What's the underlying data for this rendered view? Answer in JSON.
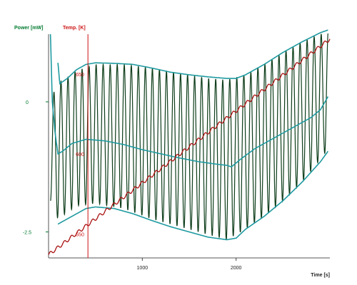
{
  "chart_data": {
    "type": "line",
    "x_axis": {
      "label": "Time [s]",
      "ticks": [
        1000,
        2000
      ],
      "range": [
        0,
        3000
      ]
    },
    "y_axes": [
      {
        "id": "power",
        "label": "Power [mW]",
        "color": "#007a2e",
        "ticks": [
          0,
          -2.5
        ],
        "tick_labels": [
          "0",
          "-2.5"
        ],
        "range": [
          -3.0,
          1.3
        ]
      },
      {
        "id": "temp",
        "label": "Temp. [K]",
        "color": "#cc1111",
        "ticks": [
          650,
          600,
          550
        ],
        "tick_labels": [
          "650",
          "600",
          "550"
        ],
        "range": [
          535,
          675
        ]
      }
    ],
    "cursor": {
      "x": 420,
      "color": "#cc1111"
    },
    "series": [
      {
        "axis": "power",
        "role": "modulated heat flow",
        "color": "#0d3d1a",
        "oscillation_period_s": 75,
        "start_x": 20,
        "envelope_upper": [
          [
            20,
            0.05
          ],
          [
            100,
            0.35
          ],
          [
            300,
            0.6
          ],
          [
            500,
            0.72
          ],
          [
            800,
            0.72
          ],
          [
            1100,
            0.65
          ],
          [
            1400,
            0.55
          ],
          [
            1700,
            0.45
          ],
          [
            1900,
            0.42
          ],
          [
            2100,
            0.52
          ],
          [
            2300,
            0.72
          ],
          [
            2500,
            0.95
          ],
          [
            2700,
            1.15
          ],
          [
            2900,
            1.3
          ],
          [
            2980,
            1.35
          ]
        ],
        "envelope_lower": [
          [
            20,
            -1.9
          ],
          [
            100,
            -2.25
          ],
          [
            300,
            -2.0
          ],
          [
            500,
            -1.95
          ],
          [
            800,
            -2.05
          ],
          [
            1100,
            -2.25
          ],
          [
            1400,
            -2.4
          ],
          [
            1700,
            -2.55
          ],
          [
            1900,
            -2.65
          ],
          [
            2100,
            -2.45
          ],
          [
            2300,
            -2.2
          ],
          [
            2500,
            -1.9
          ],
          [
            2700,
            -1.55
          ],
          [
            2900,
            -1.1
          ],
          [
            2980,
            -0.9
          ]
        ]
      },
      {
        "axis": "power",
        "role": "upper envelope",
        "color": "#1f9aa0",
        "start_x": 100,
        "points": [
          [
            100,
            0.75
          ],
          [
            120,
            0.35
          ],
          [
            200,
            0.45
          ],
          [
            300,
            0.62
          ],
          [
            400,
            0.72
          ],
          [
            500,
            0.75
          ],
          [
            700,
            0.74
          ],
          [
            900,
            0.72
          ],
          [
            1100,
            0.65
          ],
          [
            1300,
            0.57
          ],
          [
            1500,
            0.52
          ],
          [
            1700,
            0.48
          ],
          [
            1900,
            0.45
          ],
          [
            2000,
            0.45
          ],
          [
            2100,
            0.52
          ],
          [
            2300,
            0.72
          ],
          [
            2500,
            0.95
          ],
          [
            2700,
            1.15
          ],
          [
            2900,
            1.33
          ],
          [
            2980,
            1.38
          ]
        ]
      },
      {
        "axis": "power",
        "role": "average heat flow",
        "color": "#1f9aa0",
        "start_x": 20,
        "points": [
          [
            20,
            1.3
          ],
          [
            40,
            0.0
          ],
          [
            70,
            -0.6
          ],
          [
            100,
            -1.0
          ],
          [
            150,
            -0.95
          ],
          [
            250,
            -0.8
          ],
          [
            400,
            -0.72
          ],
          [
            600,
            -0.75
          ],
          [
            800,
            -0.82
          ],
          [
            1000,
            -0.92
          ],
          [
            1200,
            -1.0
          ],
          [
            1400,
            -1.08
          ],
          [
            1600,
            -1.15
          ],
          [
            1800,
            -1.2
          ],
          [
            1900,
            -1.22
          ],
          [
            1950,
            -1.25
          ],
          [
            2050,
            -1.1
          ],
          [
            2200,
            -0.9
          ],
          [
            2400,
            -0.7
          ],
          [
            2600,
            -0.5
          ],
          [
            2800,
            -0.3
          ],
          [
            2900,
            -0.15
          ],
          [
            2980,
            0.1
          ]
        ]
      },
      {
        "axis": "power",
        "role": "lower envelope",
        "color": "#1f9aa0",
        "start_x": 100,
        "points": [
          [
            100,
            -2.35
          ],
          [
            200,
            -2.25
          ],
          [
            300,
            -2.15
          ],
          [
            400,
            -2.05
          ],
          [
            500,
            -2.02
          ],
          [
            700,
            -2.05
          ],
          [
            900,
            -2.15
          ],
          [
            1100,
            -2.28
          ],
          [
            1300,
            -2.4
          ],
          [
            1500,
            -2.5
          ],
          [
            1700,
            -2.6
          ],
          [
            1900,
            -2.65
          ],
          [
            2000,
            -2.62
          ],
          [
            2100,
            -2.45
          ],
          [
            2300,
            -2.2
          ],
          [
            2500,
            -1.9
          ],
          [
            2700,
            -1.55
          ],
          [
            2900,
            -1.15
          ],
          [
            2980,
            -0.95
          ]
        ]
      },
      {
        "axis": "temp",
        "role": "temperature",
        "color": "#aa1111",
        "start": [
          0,
          537
        ],
        "end": [
          3000,
          672
        ],
        "ripple_period_s": 75
      }
    ]
  }
}
